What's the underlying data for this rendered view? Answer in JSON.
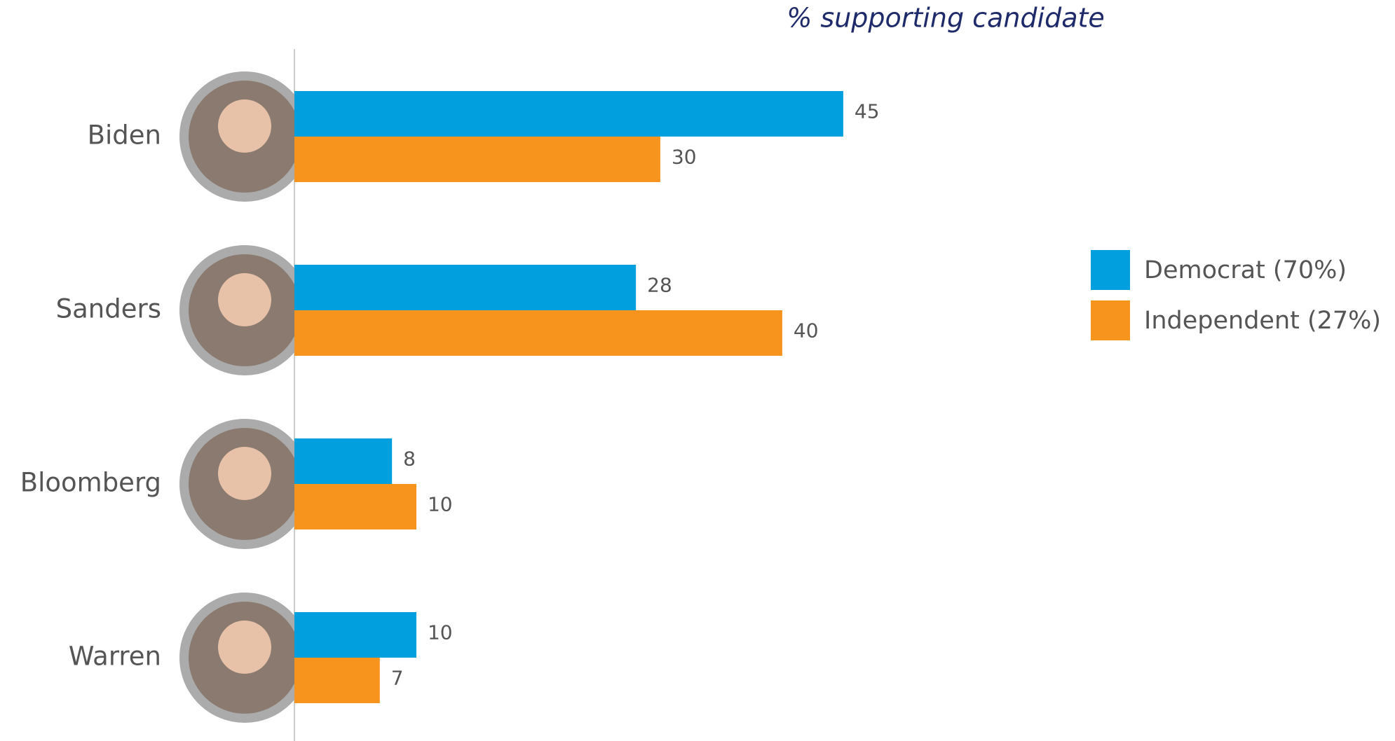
{
  "chart_data": {
    "type": "bar",
    "orientation": "horizontal",
    "title": "% supporting candidate",
    "categories": [
      "Biden",
      "Sanders",
      "Bloomberg",
      "Warren"
    ],
    "series": [
      {
        "name": "Democrat (70%)",
        "color": "#019fde",
        "values": [
          45,
          28,
          8,
          10
        ]
      },
      {
        "name": "Independent (27%)",
        "color": "#f7941e",
        "values": [
          30,
          40,
          10,
          7
        ]
      }
    ]
  }
}
